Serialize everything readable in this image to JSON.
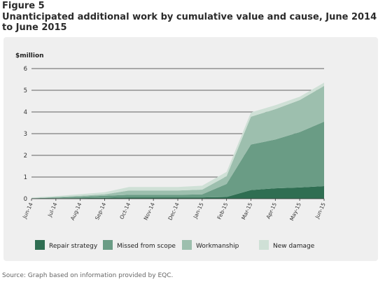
{
  "figure_label": "Figure 5",
  "title": "Unanticipated additional work by cumulative value and cause, June 2014 to June 2015",
  "source": "Source: Graph based on information provided by EQC.",
  "chart_data": {
    "type": "area",
    "stacked": true,
    "ylabel": "$million",
    "xlabel": "",
    "ylim": [
      0,
      6
    ],
    "yticks": [
      0,
      1,
      2,
      3,
      4,
      5,
      6
    ],
    "grid": true,
    "legend_position": "bottom",
    "categories": [
      "Jun-14",
      "Jul-14",
      "Aug-14",
      "Sep-14",
      "Oct-14",
      "Nov-14",
      "Dec-14",
      "Jan-15",
      "Feb-15",
      "Mar-15",
      "Apr-15",
      "May-15",
      "Jun-15"
    ],
    "series": [
      {
        "name": "Repair strategy",
        "color": "#2f6e52",
        "values": [
          0.01,
          0.02,
          0.03,
          0.04,
          0.06,
          0.06,
          0.06,
          0.06,
          0.08,
          0.4,
          0.48,
          0.52,
          0.58
        ]
      },
      {
        "name": "Missed from scope",
        "color": "#6a9c85",
        "values": [
          0.01,
          0.03,
          0.06,
          0.1,
          0.12,
          0.12,
          0.12,
          0.14,
          0.6,
          2.1,
          2.25,
          2.55,
          2.97
        ]
      },
      {
        "name": "Workmanship",
        "color": "#9dbfae",
        "values": [
          0.01,
          0.03,
          0.05,
          0.06,
          0.2,
          0.2,
          0.2,
          0.22,
          0.36,
          1.28,
          1.4,
          1.48,
          1.65
        ]
      },
      {
        "name": "New damage",
        "color": "#cfe0d6",
        "values": [
          0.02,
          0.04,
          0.07,
          0.1,
          0.16,
          0.16,
          0.16,
          0.18,
          0.2,
          0.2,
          0.18,
          0.15,
          0.15
        ]
      }
    ]
  }
}
